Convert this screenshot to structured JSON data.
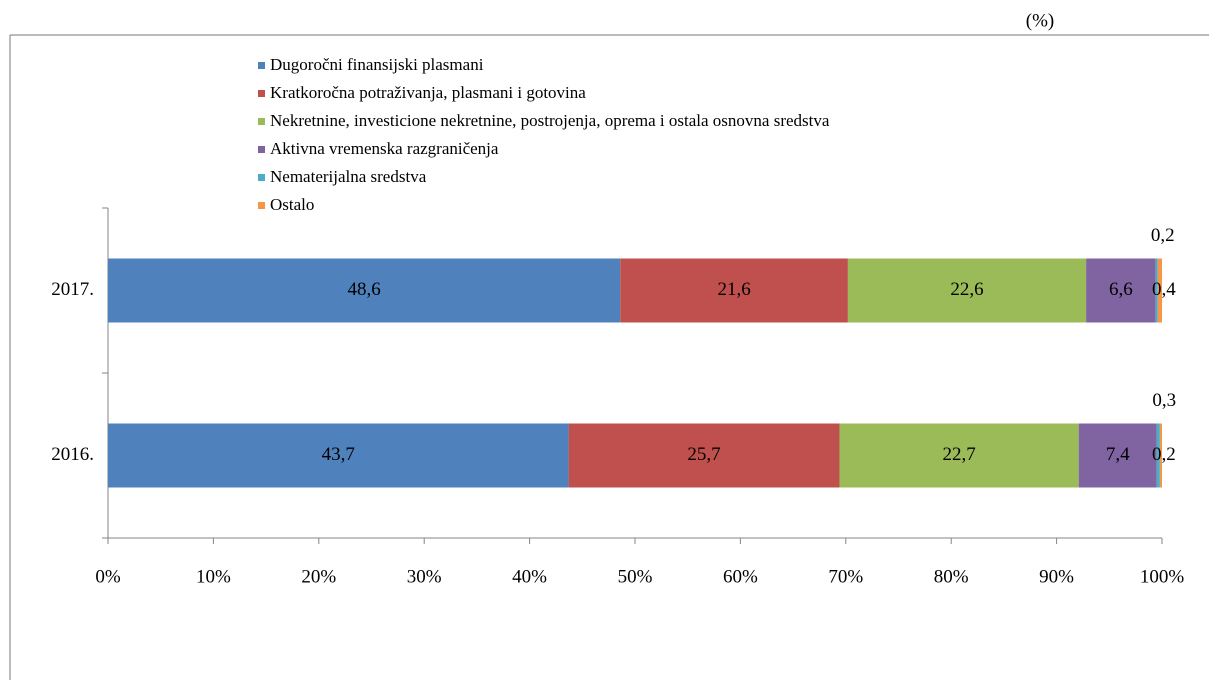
{
  "chart_data": {
    "type": "stacked_bar_horizontal",
    "subtitle": "(%)",
    "categories": [
      "2017.",
      "2016."
    ],
    "series": [
      {
        "name": "Dugoročni finansijski plasmani",
        "color": "#4f81bd",
        "values": [
          48.6,
          43.7
        ],
        "value_labels": [
          "48,6",
          "43,7"
        ]
      },
      {
        "name": "Kratkoročna potraživanja, plasmani i gotovina",
        "color": "#c0504d",
        "values": [
          21.6,
          25.7
        ],
        "value_labels": [
          "21,6",
          "25,7"
        ]
      },
      {
        "name": "Nekretnine, investicione nekretnine, postrojenja, oprema i ostala osnovna sredstva",
        "color": "#9bbb59",
        "values": [
          22.6,
          22.7
        ],
        "value_labels": [
          "22,6",
          "22,7"
        ]
      },
      {
        "name": "Aktivna vremenska razgraničenja",
        "color": "#8064a2",
        "values": [
          6.6,
          7.4
        ],
        "value_labels": [
          "6,6",
          "7,4"
        ]
      },
      {
        "name": "Nematerijalna sredstva",
        "color": "#4bacc6",
        "values": [
          0.2,
          0.3
        ],
        "value_labels": [
          "0,2",
          "0,3"
        ]
      },
      {
        "name": "Ostalo",
        "color": "#f79646",
        "values": [
          0.4,
          0.2
        ],
        "value_labels": [
          "0,4",
          "0,2"
        ]
      }
    ],
    "xlim": [
      0,
      100
    ],
    "xticks": [
      {
        "value": 0,
        "label": "0%"
      },
      {
        "value": 10,
        "label": "10%"
      },
      {
        "value": 20,
        "label": "20%"
      },
      {
        "value": 30,
        "label": "30%"
      },
      {
        "value": 40,
        "label": "40%"
      },
      {
        "value": 50,
        "label": "50%"
      },
      {
        "value": 60,
        "label": "60%"
      },
      {
        "value": 70,
        "label": "70%"
      },
      {
        "value": 80,
        "label": "80%"
      },
      {
        "value": 90,
        "label": "90%"
      },
      {
        "value": 100,
        "label": "100%"
      }
    ],
    "legend": "top-left",
    "grid": false
  }
}
